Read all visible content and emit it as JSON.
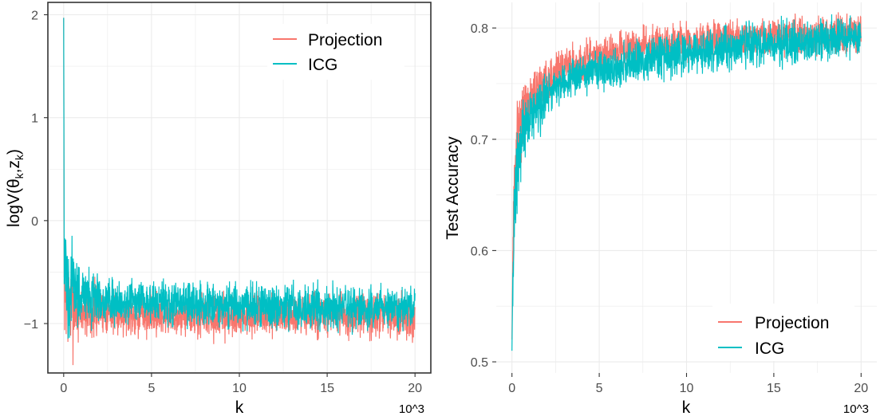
{
  "colors": {
    "projection": "#F8766D",
    "icg": "#00BFC4",
    "grid": "#EBEBEB",
    "frame": "#333333"
  },
  "chart_data": [
    {
      "type": "line",
      "panel": "left",
      "xlabel": "k",
      "ylabel_text": "logV(θ",
      "ylabel_sub1": "k",
      "ylabel_mid": ",z",
      "ylabel_sub2": "k",
      "ylabel_close": ")",
      "x_multiplier": "10^3",
      "xlim": [
        -0.9,
        20.9
      ],
      "ylim": [
        -1.48,
        2.12
      ],
      "x_ticks": [
        0,
        5,
        10,
        15,
        20
      ],
      "x_tick_labels": [
        "0",
        "5",
        "10",
        "15",
        "20"
      ],
      "y_ticks": [
        -1,
        0,
        1,
        2
      ],
      "y_tick_labels": [
        "−1",
        "0",
        "1",
        "2"
      ],
      "legend_position": "top-right",
      "series": [
        {
          "name": "Projection",
          "color_key": "projection",
          "x": [
            0,
            0.03,
            0.08,
            0.2,
            0.5,
            1,
            2,
            3,
            5,
            7,
            10,
            12,
            15,
            18,
            20
          ],
          "values": [
            1.97,
            -0.55,
            -0.7,
            -0.78,
            -0.84,
            -0.86,
            -0.88,
            -0.9,
            -0.91,
            -0.92,
            -0.93,
            -0.93,
            -0.93,
            -0.93,
            -0.93
          ],
          "spread": 0.1
        },
        {
          "name": "ICG",
          "color_key": "icg",
          "x": [
            0,
            0.03,
            0.08,
            0.2,
            0.5,
            1,
            2,
            3,
            5,
            7,
            10,
            12,
            15,
            18,
            20
          ],
          "values": [
            1.97,
            -0.45,
            -0.55,
            -0.62,
            -0.68,
            -0.72,
            -0.76,
            -0.78,
            -0.8,
            -0.81,
            -0.82,
            -0.83,
            -0.84,
            -0.84,
            -0.84
          ],
          "spread": 0.1
        }
      ]
    },
    {
      "type": "line",
      "panel": "right",
      "xlabel": "k",
      "ylabel": "Test Accuracy",
      "x_multiplier": "10^3",
      "xlim": [
        -0.9,
        20.9
      ],
      "ylim": [
        0.49,
        0.823
      ],
      "x_ticks": [
        0,
        5,
        10,
        15,
        20
      ],
      "x_tick_labels": [
        "0",
        "5",
        "10",
        "15",
        "20"
      ],
      "y_ticks": [
        0.5,
        0.6,
        0.7,
        0.8
      ],
      "y_tick_labels": [
        "0.5",
        "0.6",
        "0.7",
        "0.8"
      ],
      "legend_position": "bottom-right",
      "series": [
        {
          "name": "Projection",
          "color_key": "projection",
          "x": [
            0,
            0.05,
            0.15,
            0.3,
            0.5,
            1,
            2,
            3,
            5,
            7,
            10,
            12,
            15,
            17,
            20
          ],
          "values": [
            0.52,
            0.6,
            0.66,
            0.7,
            0.72,
            0.735,
            0.755,
            0.765,
            0.775,
            0.782,
            0.788,
            0.79,
            0.792,
            0.793,
            0.794
          ],
          "spread": 0.008
        },
        {
          "name": "ICG",
          "color_key": "icg",
          "x": [
            0,
            0.05,
            0.15,
            0.3,
            0.5,
            1,
            2,
            3,
            5,
            7,
            10,
            12,
            15,
            17,
            20
          ],
          "values": [
            0.51,
            0.58,
            0.63,
            0.67,
            0.7,
            0.72,
            0.74,
            0.752,
            0.762,
            0.77,
            0.776,
            0.781,
            0.786,
            0.789,
            0.792
          ],
          "spread": 0.009
        }
      ]
    }
  ]
}
